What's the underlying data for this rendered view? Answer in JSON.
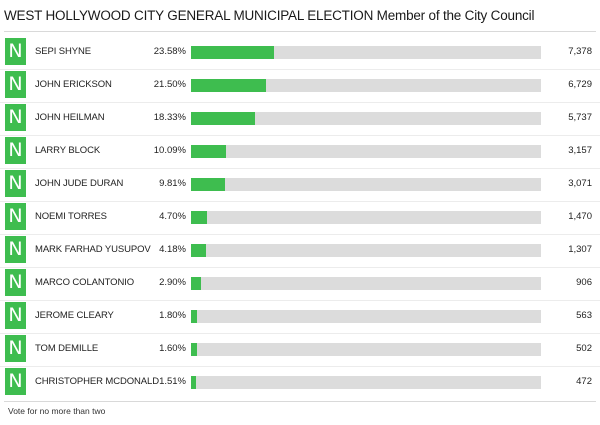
{
  "header": {
    "title": "WEST HOLLYWOOD CITY GENERAL MUNICIPAL ELECTION Member of the City Council"
  },
  "footer": {
    "note": "Vote for no more than two"
  },
  "colors": {
    "bar_fill": "#3ebd4f",
    "bar_track": "#dcdcdc",
    "badge": "#3ebd4f"
  },
  "chart_data": {
    "type": "bar",
    "orientation": "horizontal",
    "title": "WEST HOLLYWOOD CITY GENERAL MUNICIPAL ELECTION Member of the City Council",
    "xlim": [
      0,
      100
    ],
    "grid": false,
    "candidates": [
      {
        "badge": "N",
        "name": "SEPI SHYNE",
        "percent_label": "23.58%",
        "percent": 23.58,
        "votes_label": "7,378",
        "votes": 7378
      },
      {
        "badge": "N",
        "name": "JOHN ERICKSON",
        "percent_label": "21.50%",
        "percent": 21.5,
        "votes_label": "6,729",
        "votes": 6729
      },
      {
        "badge": "N",
        "name": "JOHN HEILMAN",
        "percent_label": "18.33%",
        "percent": 18.33,
        "votes_label": "5,737",
        "votes": 5737
      },
      {
        "badge": "N",
        "name": "LARRY BLOCK",
        "percent_label": "10.09%",
        "percent": 10.09,
        "votes_label": "3,157",
        "votes": 3157
      },
      {
        "badge": "N",
        "name": "JOHN JUDE DURAN",
        "percent_label": "9.81%",
        "percent": 9.81,
        "votes_label": "3,071",
        "votes": 3071
      },
      {
        "badge": "N",
        "name": "NOEMI TORRES",
        "percent_label": "4.70%",
        "percent": 4.7,
        "votes_label": "1,470",
        "votes": 1470
      },
      {
        "badge": "N",
        "name": "MARK FARHAD YUSUPOV",
        "percent_label": "4.18%",
        "percent": 4.18,
        "votes_label": "1,307",
        "votes": 1307
      },
      {
        "badge": "N",
        "name": "MARCO COLANTONIO",
        "percent_label": "2.90%",
        "percent": 2.9,
        "votes_label": "906",
        "votes": 906
      },
      {
        "badge": "N",
        "name": "JEROME CLEARY",
        "percent_label": "1.80%",
        "percent": 1.8,
        "votes_label": "563",
        "votes": 563
      },
      {
        "badge": "N",
        "name": "TOM DEMILLE",
        "percent_label": "1.60%",
        "percent": 1.6,
        "votes_label": "502",
        "votes": 502
      },
      {
        "badge": "N",
        "name": "CHRISTOPHER MCDONALD",
        "percent_label": "1.51%",
        "percent": 1.51,
        "votes_label": "472",
        "votes": 472
      }
    ]
  }
}
